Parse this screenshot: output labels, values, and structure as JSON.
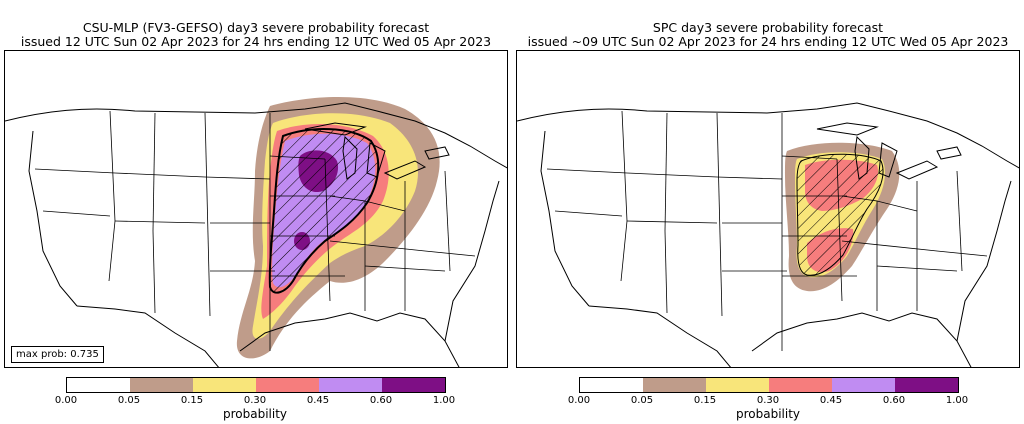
{
  "left_panel": {
    "title_line1": "CSU-MLP (FV3-GEFSO) day3 severe probability forecast",
    "title_line2": "issued 12 UTC Sun 02 Apr 2023 for 24 hrs ending 12 UTC Wed 05 Apr 2023",
    "max_prob_label": "max prob: 0.735"
  },
  "right_panel": {
    "title_line1": "SPC day3 severe probability forecast",
    "title_line2": "issued ~09 UTC Sun 02 Apr 2023 for 24 hrs ending 12 UTC Wed 05 Apr 2023"
  },
  "colorbar": {
    "label": "probability",
    "ticks": [
      "0.00",
      "0.05",
      "0.15",
      "0.30",
      "0.45",
      "0.60",
      "1.00"
    ],
    "colors": [
      "#ffffff",
      "#bf9c8a",
      "#f8e57a",
      "#f67d7d",
      "#c08cf2",
      "#7e0f85"
    ]
  },
  "colors": {
    "prob_05": "#bf9c8a",
    "prob_15": "#f8e57a",
    "prob_30": "#f67d7d",
    "prob_45": "#c08cf2",
    "prob_60": "#7e0f85",
    "sig_hatch": "#000000"
  }
}
